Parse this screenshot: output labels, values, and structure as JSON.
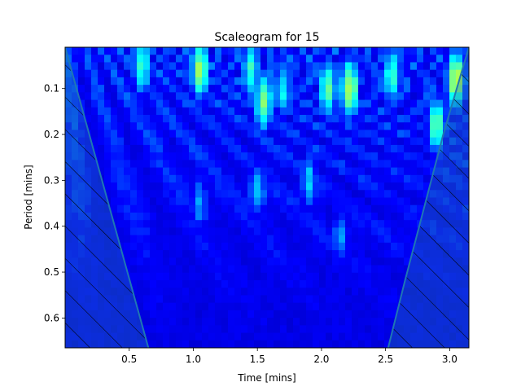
{
  "chart_data": {
    "type": "heatmap",
    "title": "Scaleogram for 15",
    "xlabel": "Time [mins]",
    "ylabel": "Period [mins]",
    "xlim": [
      0.0,
      3.15
    ],
    "ylim": [
      0.01,
      0.665
    ],
    "y_inverted": true,
    "xticks": [
      0.5,
      1.0,
      1.5,
      2.0,
      2.5,
      3.0
    ],
    "xtick_labels": [
      "0.5",
      "1.0",
      "1.5",
      "2.0",
      "2.5",
      "3.0"
    ],
    "yticks": [
      0.1,
      0.2,
      0.3,
      0.4,
      0.5,
      0.6
    ],
    "ytick_labels": [
      "0.1",
      "0.2",
      "0.3",
      "0.4",
      "0.5",
      "0.6"
    ],
    "colormap": "jet",
    "colormap_colors": [
      "#00007f",
      "#0000ff",
      "#00ffff",
      "#ffff00",
      "#ff0000"
    ],
    "cone_of_influence": {
      "left_edge": [
        [
          0.0,
          0.01
        ],
        [
          0.65,
          0.665
        ]
      ],
      "right_edge": [
        [
          2.52,
          0.665
        ],
        [
          2.65,
          0.52
        ],
        [
          2.95,
          0.2
        ],
        [
          3.15,
          0.01
        ]
      ],
      "color": "#1f77b4",
      "hatch": "diagonal"
    },
    "hotspots": [
      {
        "x": 0.6,
        "y": 0.05,
        "v": 0.55
      },
      {
        "x": 1.05,
        "y": 0.06,
        "v": 0.65
      },
      {
        "x": 1.45,
        "y": 0.06,
        "v": 0.55
      },
      {
        "x": 1.55,
        "y": 0.13,
        "v": 0.62
      },
      {
        "x": 1.7,
        "y": 0.1,
        "v": 0.5
      },
      {
        "x": 2.05,
        "y": 0.1,
        "v": 0.6
      },
      {
        "x": 2.22,
        "y": 0.1,
        "v": 0.68
      },
      {
        "x": 2.55,
        "y": 0.07,
        "v": 0.55
      },
      {
        "x": 2.9,
        "y": 0.18,
        "v": 0.6
      },
      {
        "x": 3.05,
        "y": 0.08,
        "v": 0.7
      },
      {
        "x": 1.5,
        "y": 0.32,
        "v": 0.45
      },
      {
        "x": 1.9,
        "y": 0.3,
        "v": 0.45
      },
      {
        "x": 2.15,
        "y": 0.42,
        "v": 0.4
      },
      {
        "x": 1.05,
        "y": 0.35,
        "v": 0.4
      }
    ]
  }
}
